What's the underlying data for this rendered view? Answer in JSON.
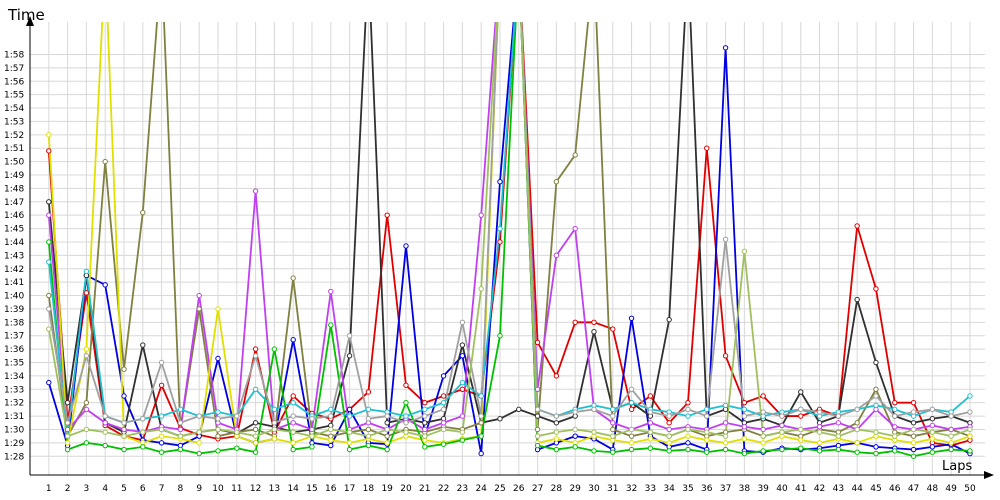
{
  "chart_data": {
    "type": "line",
    "ylabel": "Time",
    "xlabel": "Laps",
    "xlim": [
      0,
      50.8
    ],
    "ylim": [
      86.6,
      120.2
    ],
    "grid": true,
    "x": [
      1,
      2,
      3,
      4,
      5,
      6,
      7,
      8,
      9,
      10,
      11,
      12,
      13,
      14,
      15,
      16,
      17,
      18,
      19,
      20,
      21,
      22,
      23,
      24,
      25,
      26,
      27,
      28,
      29,
      30,
      31,
      32,
      33,
      34,
      35,
      36,
      37,
      38,
      39,
      40,
      41,
      42,
      43,
      44,
      45,
      46,
      47,
      48,
      49,
      50
    ],
    "xticks": [
      1,
      2,
      3,
      4,
      5,
      6,
      7,
      8,
      9,
      10,
      11,
      12,
      13,
      14,
      15,
      16,
      17,
      18,
      19,
      20,
      21,
      22,
      23,
      24,
      25,
      26,
      27,
      28,
      29,
      30,
      31,
      32,
      33,
      34,
      35,
      36,
      37,
      38,
      39,
      40,
      41,
      42,
      43,
      44,
      45,
      46,
      47,
      48,
      49,
      50
    ],
    "yticks": [
      {
        "value": 88,
        "label": "1:28"
      },
      {
        "value": 89,
        "label": "1:29"
      },
      {
        "value": 90,
        "label": "1:30"
      },
      {
        "value": 91,
        "label": "1:31"
      },
      {
        "value": 92,
        "label": "1:32"
      },
      {
        "value": 93,
        "label": "1:33"
      },
      {
        "value": 94,
        "label": "1:34"
      },
      {
        "value": 95,
        "label": "1:35"
      },
      {
        "value": 96,
        "label": "1:36"
      },
      {
        "value": 97,
        "label": "1:37"
      },
      {
        "value": 98,
        "label": "1:38"
      },
      {
        "value": 99,
        "label": "1:39"
      },
      {
        "value": 100,
        "label": "1:40"
      },
      {
        "value": 101,
        "label": "1:41"
      },
      {
        "value": 102,
        "label": "1:42"
      },
      {
        "value": 103,
        "label": "1:43"
      },
      {
        "value": 104,
        "label": "1:44"
      },
      {
        "value": 105,
        "label": "1:45"
      },
      {
        "value": 106,
        "label": "1:46"
      },
      {
        "value": 107,
        "label": "1:47"
      },
      {
        "value": 108,
        "label": "1:48"
      },
      {
        "value": 109,
        "label": "1:49"
      },
      {
        "value": 110,
        "label": "1:50"
      },
      {
        "value": 111,
        "label": "1:51"
      },
      {
        "value": 112,
        "label": "1:52"
      },
      {
        "value": 113,
        "label": "1:53"
      },
      {
        "value": 114,
        "label": "1:54"
      },
      {
        "value": 115,
        "label": "1:55"
      },
      {
        "value": 116,
        "label": "1:56"
      },
      {
        "value": 117,
        "label": "1:57"
      },
      {
        "value": 118,
        "label": "1:58"
      }
    ],
    "series": [
      {
        "color": "#e00000",
        "values": [
          110.8,
          90.5,
          100.2,
          90.3,
          89.5,
          89.2,
          93.3,
          90.1,
          89.6,
          89.3,
          89.5,
          96.0,
          89.8,
          92.5,
          91.2,
          90.8,
          91.5,
          92.8,
          106.0,
          93.3,
          92.0,
          92.5,
          93.0,
          92.5,
          104.0,
          125,
          96.5,
          94.0,
          98.0,
          98.0,
          97.5,
          91.5,
          92.5,
          90.5,
          92.0,
          111.0,
          95.5,
          92.0,
          92.5,
          91.0,
          91.0,
          91.5,
          91.0,
          105.2,
          100.5,
          92.0,
          92.0,
          89.0,
          88.8,
          89.2
        ]
      },
      {
        "color": "#0000e0",
        "values": [
          93.5,
          88.8,
          101.5,
          100.8,
          92.5,
          89.2,
          89.0,
          88.8,
          89.5,
          95.3,
          89.5,
          89.0,
          89.3,
          96.7,
          89.0,
          88.8,
          91.5,
          89.0,
          88.9,
          103.7,
          89.5,
          94.0,
          95.5,
          88.2,
          108.5,
          125,
          88.5,
          89.0,
          89.5,
          89.3,
          88.5,
          98.3,
          89.5,
          88.7,
          89.0,
          88.5,
          118.5,
          88.4,
          88.3,
          88.6,
          88.5,
          88.6,
          88.8,
          89.0,
          88.7,
          88.6,
          88.5,
          88.7,
          88.9,
          88.2
        ]
      },
      {
        "color": "#303030",
        "values": [
          107.0,
          92.0,
          101.5,
          90.5,
          89.8,
          96.3,
          90.0,
          89.5,
          89.8,
          90.0,
          89.7,
          90.5,
          90.2,
          89.8,
          90.0,
          90.3,
          95.5,
          125,
          90.5,
          90.8,
          90.5,
          90.8,
          96.3,
          90.5,
          90.8,
          91.5,
          91.0,
          90.5,
          91.0,
          97.3,
          91.5,
          92.0,
          91.0,
          98.2,
          125,
          91.0,
          91.5,
          90.5,
          90.8,
          90.3,
          92.8,
          90.5,
          91.0,
          99.7,
          95.0,
          91.0,
          90.5,
          90.8,
          91.0,
          90.5
        ]
      },
      {
        "color": "#808040",
        "values": [
          100.0,
          89.5,
          92.0,
          110.0,
          94.5,
          106.2,
          125,
          90.0,
          99.0,
          89.5,
          89.8,
          90.0,
          89.5,
          101.3,
          89.8,
          89.5,
          89.8,
          90.0,
          89.5,
          90.0,
          89.8,
          90.2,
          90.0,
          90.5,
          125,
          125,
          90.0,
          108.5,
          110.5,
          125,
          90.0,
          89.5,
          89.8,
          89.5,
          90.0,
          89.5,
          89.8,
          90.0,
          89.5,
          89.8,
          89.5,
          90.0,
          89.8,
          90.5,
          93.0,
          89.8,
          89.5,
          89.8,
          90.0,
          89.5
        ]
      },
      {
        "color": "#c040f0",
        "values": [
          106.0,
          90.0,
          91.5,
          90.5,
          90.0,
          89.8,
          90.2,
          90.0,
          100.0,
          90.5,
          90.0,
          107.8,
          90.0,
          90.5,
          90.0,
          100.3,
          90.0,
          90.5,
          90.0,
          90.8,
          90.0,
          90.5,
          91.0,
          106.0,
          125,
          125,
          93.0,
          103.0,
          105.0,
          91.5,
          90.5,
          90.0,
          90.5,
          90.0,
          90.2,
          90.0,
          90.5,
          90.2,
          90.0,
          90.3,
          90.0,
          90.2,
          90.5,
          90.0,
          91.5,
          90.2,
          90.0,
          90.3,
          90.0,
          90.2
        ]
      },
      {
        "color": "#e0e000",
        "values": [
          112.0,
          89.0,
          96.0,
          125,
          89.5,
          89.0,
          89.5,
          89.3,
          89.0,
          99.0,
          89.5,
          89.0,
          89.3,
          89.0,
          89.5,
          89.2,
          89.0,
          89.3,
          89.0,
          89.5,
          89.2,
          89.0,
          89.3,
          89.5,
          125,
          125,
          89.0,
          89.3,
          89.0,
          89.5,
          89.2,
          89.0,
          89.3,
          89.0,
          89.5,
          89.2,
          89.0,
          89.3,
          89.0,
          89.5,
          89.2,
          89.0,
          89.3,
          89.0,
          89.5,
          89.2,
          89.0,
          89.3,
          89.0,
          89.5
        ]
      },
      {
        "color": "#00c000",
        "values": [
          104.0,
          88.5,
          89.0,
          88.8,
          88.5,
          88.7,
          88.3,
          88.5,
          88.2,
          88.4,
          88.6,
          88.3,
          96.0,
          88.5,
          88.7,
          97.8,
          88.5,
          88.8,
          88.5,
          92.0,
          88.7,
          88.9,
          89.2,
          89.5,
          97.0,
          125,
          88.8,
          88.5,
          88.7,
          88.4,
          88.3,
          88.5,
          88.6,
          88.4,
          88.5,
          88.3,
          88.5,
          88.2,
          88.4,
          88.5,
          88.6,
          88.4,
          88.5,
          88.3,
          88.2,
          88.4,
          88.0,
          88.3,
          88.5,
          88.4
        ]
      },
      {
        "color": "#20c0d0",
        "values": [
          102.5,
          89.5,
          101.8,
          91.0,
          90.5,
          90.8,
          91.0,
          91.5,
          91.0,
          91.3,
          91.0,
          93.0,
          91.5,
          92.0,
          91.0,
          91.5,
          91.0,
          91.5,
          91.3,
          91.0,
          91.5,
          92.0,
          93.5,
          92.5,
          105.0,
          125,
          91.5,
          91.0,
          91.5,
          91.8,
          91.5,
          92.0,
          91.5,
          91.3,
          91.0,
          91.5,
          91.8,
          91.5,
          91.0,
          91.3,
          91.5,
          91.0,
          91.3,
          91.5,
          91.8,
          91.5,
          91.0,
          91.5,
          91.3,
          92.5
        ]
      },
      {
        "color": "#a0a0a0",
        "values": [
          99.0,
          90.5,
          95.5,
          91.0,
          90.5,
          90.8,
          95.0,
          90.5,
          91.0,
          90.8,
          91.0,
          95.5,
          90.5,
          91.0,
          90.8,
          91.0,
          97.0,
          90.8,
          91.0,
          90.5,
          91.0,
          91.5,
          98.0,
          91.0,
          125,
          125,
          91.5,
          91.0,
          91.3,
          91.5,
          91.0,
          93.0,
          91.3,
          91.0,
          91.5,
          91.0,
          104.2,
          91.0,
          91.3,
          91.0,
          91.5,
          91.3,
          91.0,
          91.5,
          92.5,
          91.0,
          91.3,
          91.5,
          91.0,
          91.3
        ]
      },
      {
        "color": "#a0c060",
        "values": [
          97.5,
          89.5,
          90.0,
          89.8,
          89.5,
          89.8,
          90.0,
          89.5,
          89.8,
          90.0,
          89.8,
          89.5,
          90.0,
          89.8,
          89.5,
          90.0,
          89.8,
          89.5,
          90.0,
          89.8,
          89.5,
          90.0,
          89.8,
          100.5,
          125,
          125,
          89.5,
          89.8,
          90.0,
          89.8,
          89.5,
          90.0,
          89.8,
          89.5,
          90.0,
          89.8,
          89.5,
          103.3,
          89.5,
          89.8,
          90.0,
          89.8,
          89.5,
          90.0,
          89.8,
          89.5,
          90.0,
          89.8,
          89.5,
          90.0
        ]
      }
    ]
  }
}
